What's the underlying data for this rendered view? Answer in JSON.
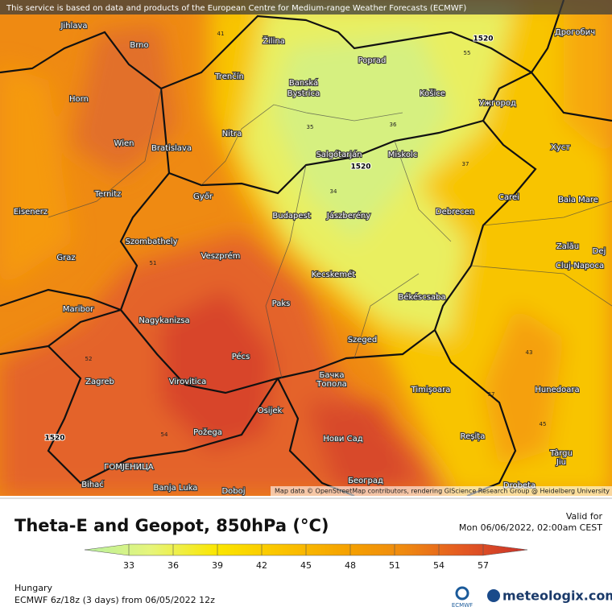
{
  "header": {
    "notice": "This service is based on data and products of the European Centre for Medium-range Weather Forecasts (ECMWF)"
  },
  "map": {
    "attribution": "Map data © OpenStreetMap contributors, rendering GIScience Research Group @ Heidelberg University",
    "labels": [
      "Jihlava",
      "Brno",
      "Žilina",
      "Poprad",
      "Дрогобич",
      "Trenčín",
      "Banská",
      "Bystrica",
      "Košice",
      "Ужгород",
      "Horn",
      "Nitra",
      "Wien",
      "Bratislava",
      "Salgótarján",
      "Miskolc",
      "Хуст",
      "Ternitz",
      "Győr",
      "Carei",
      "Baia Mare",
      "Eisenerz",
      "Budapest",
      "Jászberény",
      "Debrecen",
      "Szombathely",
      "Zalău",
      "Dej",
      "Graz",
      "Veszprém",
      "Cluj-Napoca",
      "Kecskemét",
      "Paks",
      "Békéscsaba",
      "Maribor",
      "Nagykanizsa",
      "Szeged",
      "Pécs",
      "Zagreb",
      "Virovitica",
      "Бачка",
      "Топола",
      "Timișoara",
      "Hunedoara",
      "Osijek",
      "Požega",
      "Нови Сад",
      "Reșița",
      "Târgu",
      "Jiu",
      "ГОМЈЕНИЦА",
      "Bihać",
      "Banja Luka",
      "Doboj",
      "Београд",
      "Drobeta"
    ],
    "contour_labels": [
      "1520",
      "1520",
      "1520",
      "35",
      "37",
      "34",
      "36",
      "55",
      "51",
      "52",
      "54",
      "43",
      "45",
      "41",
      "37"
    ]
  },
  "title": "Theta-E and Geopot, 850hPa (°C)",
  "valid": {
    "label": "Valid for",
    "time": "Mon 06/06/2022, 02:00am CEST"
  },
  "legend": {
    "ticks": [
      33,
      36,
      39,
      42,
      45,
      48,
      51,
      54,
      57
    ]
  },
  "footer": {
    "region": "Hungary",
    "run": "ECMWF 6z/18z (3 days)  from 06/05/2022 12z",
    "ecmwf": "ECMWF",
    "brand": "meteologix.com"
  }
}
